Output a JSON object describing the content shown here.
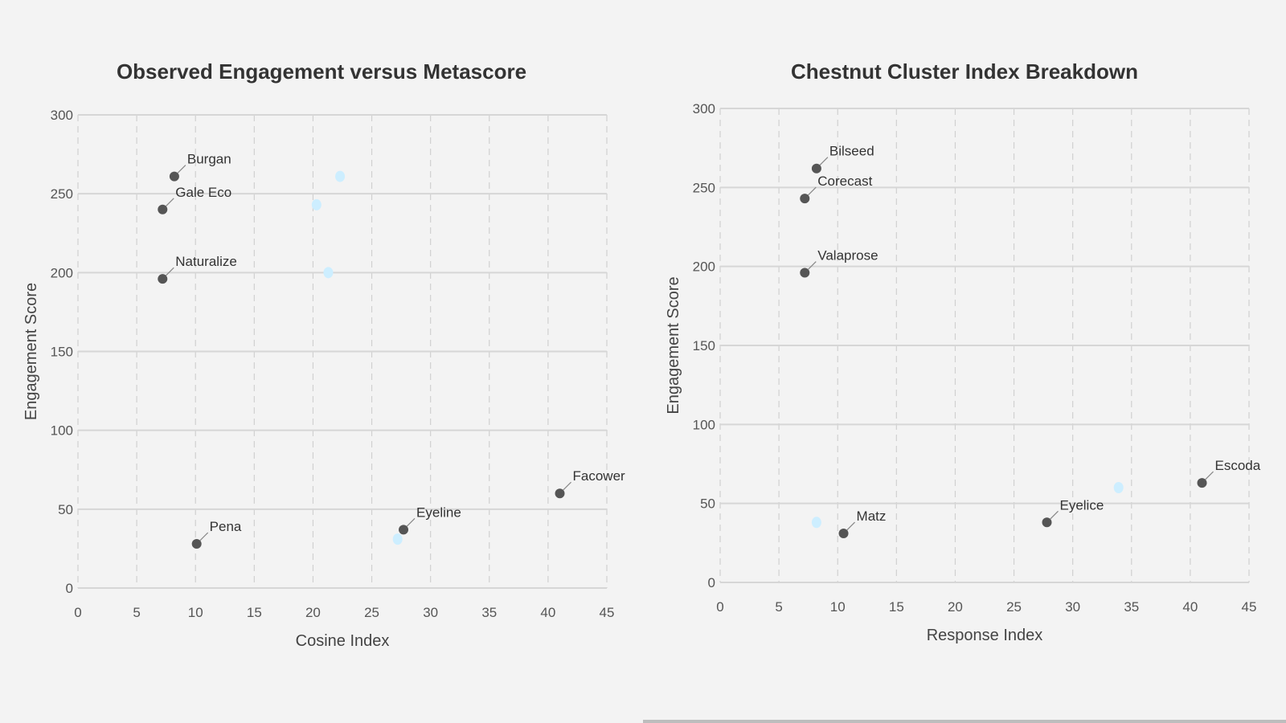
{
  "chart_data": [
    {
      "type": "scatter",
      "title": "Observed Engagement versus Metascore",
      "xlabel": "Cosine Index",
      "ylabel": "Engagement Score",
      "xlim": [
        0,
        45
      ],
      "ylim": [
        0,
        300
      ],
      "xticks": [
        0,
        5,
        10,
        15,
        20,
        25,
        30,
        35,
        40,
        45
      ],
      "yticks": [
        0,
        50,
        100,
        150,
        200,
        250,
        300
      ],
      "grid": true,
      "colors": {
        "primary": "#555555",
        "secondary": "#cdeeff"
      },
      "series": [
        {
          "points": [
            {
              "x": 8.2,
              "y": 261,
              "label": "Burgan"
            },
            {
              "x": 7.2,
              "y": 240,
              "label": "Gale Eco"
            },
            {
              "x": 7.2,
              "y": 196,
              "label": "Naturalize"
            },
            {
              "x": 10.1,
              "y": 28,
              "label": "Pena"
            },
            {
              "x": 27.7,
              "y": 37,
              "label": "Eyeline"
            },
            {
              "x": 41,
              "y": 60,
              "label": "Facower"
            }
          ]
        },
        {
          "points": [
            {
              "x": 22.3,
              "y": 261
            },
            {
              "x": 20.3,
              "y": 243
            },
            {
              "x": 21.3,
              "y": 200
            },
            {
              "x": 27.2,
              "y": 31
            }
          ]
        }
      ]
    },
    {
      "type": "scatter",
      "title": "Chestnut Cluster Index Breakdown",
      "xlabel": "Response Index",
      "ylabel": "Engagement Score",
      "xlim": [
        0,
        45
      ],
      "ylim": [
        0,
        300
      ],
      "xticks": [
        0,
        5,
        10,
        15,
        20,
        25,
        30,
        35,
        40,
        45
      ],
      "yticks": [
        0,
        50,
        100,
        150,
        200,
        250,
        300
      ],
      "grid": true,
      "colors": {
        "primary": "#555555",
        "secondary": "#cdeeff"
      },
      "series": [
        {
          "points": [
            {
              "x": 8.2,
              "y": 262,
              "label": "Bilseed"
            },
            {
              "x": 7.2,
              "y": 243,
              "label": "Corecast"
            },
            {
              "x": 7.2,
              "y": 196,
              "label": "Valaprose"
            },
            {
              "x": 10.5,
              "y": 31,
              "label": "Matz"
            },
            {
              "x": 27.8,
              "y": 38,
              "label": "Eyelice"
            },
            {
              "x": 41,
              "y": 63,
              "label": "Escoda"
            }
          ]
        },
        {
          "points": [
            {
              "x": 8.2,
              "y": 38
            },
            {
              "x": 33.9,
              "y": 60
            }
          ]
        }
      ]
    }
  ]
}
